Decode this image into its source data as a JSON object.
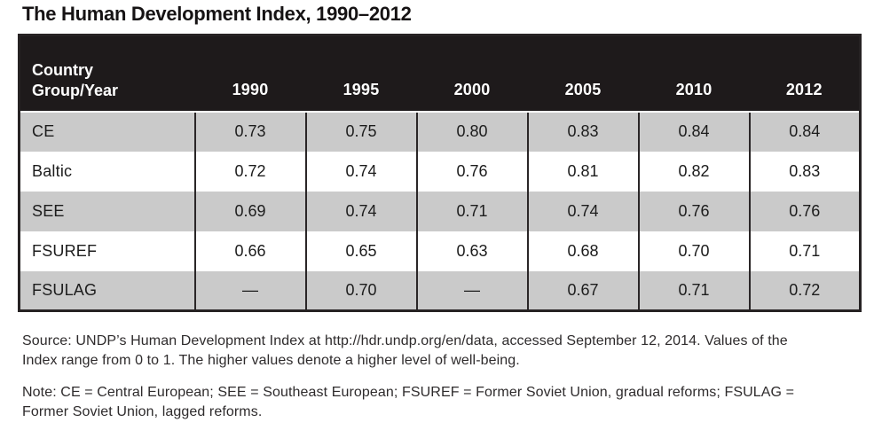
{
  "title": "The Human Development Index, 1990–2012",
  "table": {
    "corner_line1": "Country",
    "corner_line2": "Group/Year",
    "years": [
      "1990",
      "1995",
      "2000",
      "2005",
      "2010",
      "2012"
    ],
    "rows": [
      {
        "label": "CE",
        "values": [
          "0.73",
          "0.75",
          "0.80",
          "0.83",
          "0.84",
          "0.84"
        ]
      },
      {
        "label": "Baltic",
        "values": [
          "0.72",
          "0.74",
          "0.76",
          "0.81",
          "0.82",
          "0.83"
        ]
      },
      {
        "label": "SEE",
        "values": [
          "0.69",
          "0.74",
          "0.71",
          "0.74",
          "0.76",
          "0.76"
        ]
      },
      {
        "label": "FSUREF",
        "values": [
          "0.66",
          "0.65",
          "0.63",
          "0.68",
          "0.70",
          "0.71"
        ]
      },
      {
        "label": "FSULAG",
        "values": [
          "—",
          "0.70",
          "—",
          "0.67",
          "0.71",
          "0.72"
        ]
      }
    ]
  },
  "source": {
    "line1": "Source: UNDP’s Human Development Index at http://hdr.undp.org/en/data, accessed September 12, 2014. Values of the",
    "line2": "Index range from 0 to 1. The higher values denote a higher level of well-being."
  },
  "note": {
    "line1": "Note: CE = Central European; SEE = Southeast European; FSUREF = Former Soviet Union, gradual reforms; FSULAG =",
    "line2": "Former Soviet Union, lagged reforms."
  },
  "colors": {
    "header_bg": "#1e1a1b",
    "row_shade": "#cacaca",
    "border": "#262223",
    "text": "#1a1a1a"
  },
  "chart_data": {
    "type": "table",
    "title": "The Human Development Index, 1990–2012",
    "columns": [
      "Country Group/Year",
      "1990",
      "1995",
      "2000",
      "2005",
      "2010",
      "2012"
    ],
    "rows": [
      [
        "CE",
        0.73,
        0.75,
        0.8,
        0.83,
        0.84,
        0.84
      ],
      [
        "Baltic",
        0.72,
        0.74,
        0.76,
        0.81,
        0.82,
        0.83
      ],
      [
        "SEE",
        0.69,
        0.74,
        0.71,
        0.74,
        0.76,
        0.76
      ],
      [
        "FSUREF",
        0.66,
        0.65,
        0.63,
        0.68,
        0.7,
        0.71
      ],
      [
        "FSULAG",
        null,
        0.7,
        null,
        0.67,
        0.71,
        0.72
      ]
    ],
    "missing_value_symbol": "—",
    "value_range": [
      0,
      1
    ]
  }
}
